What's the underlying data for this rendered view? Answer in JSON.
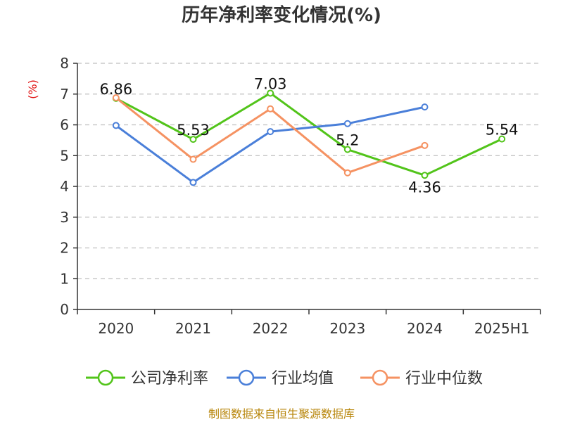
{
  "chart_data": {
    "type": "line",
    "title": "历年净利率变化情况(%)",
    "ylabel": "(%)",
    "xlabel": "",
    "categories": [
      "2020",
      "2021",
      "2022",
      "2023",
      "2024",
      "2025H1"
    ],
    "yticks": [
      "0",
      "1",
      "2",
      "3",
      "4",
      "5",
      "6",
      "7",
      "8"
    ],
    "ylim": [
      0,
      8
    ],
    "grid": true,
    "legend_position": "bottom",
    "series": [
      {
        "name": "公司净利率",
        "color": "#52c41a",
        "values": [
          6.86,
          5.53,
          7.03,
          5.2,
          4.36,
          5.54
        ],
        "labels": [
          "6.86",
          "5.53",
          "7.03",
          "5.2",
          "4.36",
          "5.54"
        ]
      },
      {
        "name": "行业均值",
        "color": "#4a7fd9",
        "values": [
          5.98,
          4.13,
          5.78,
          6.04,
          6.58,
          null
        ]
      },
      {
        "name": "行业中位数",
        "color": "#f59262",
        "values": [
          6.88,
          4.88,
          6.52,
          4.44,
          5.33,
          null
        ]
      }
    ]
  },
  "source_text": "制图数据来自恒生聚源数据库"
}
